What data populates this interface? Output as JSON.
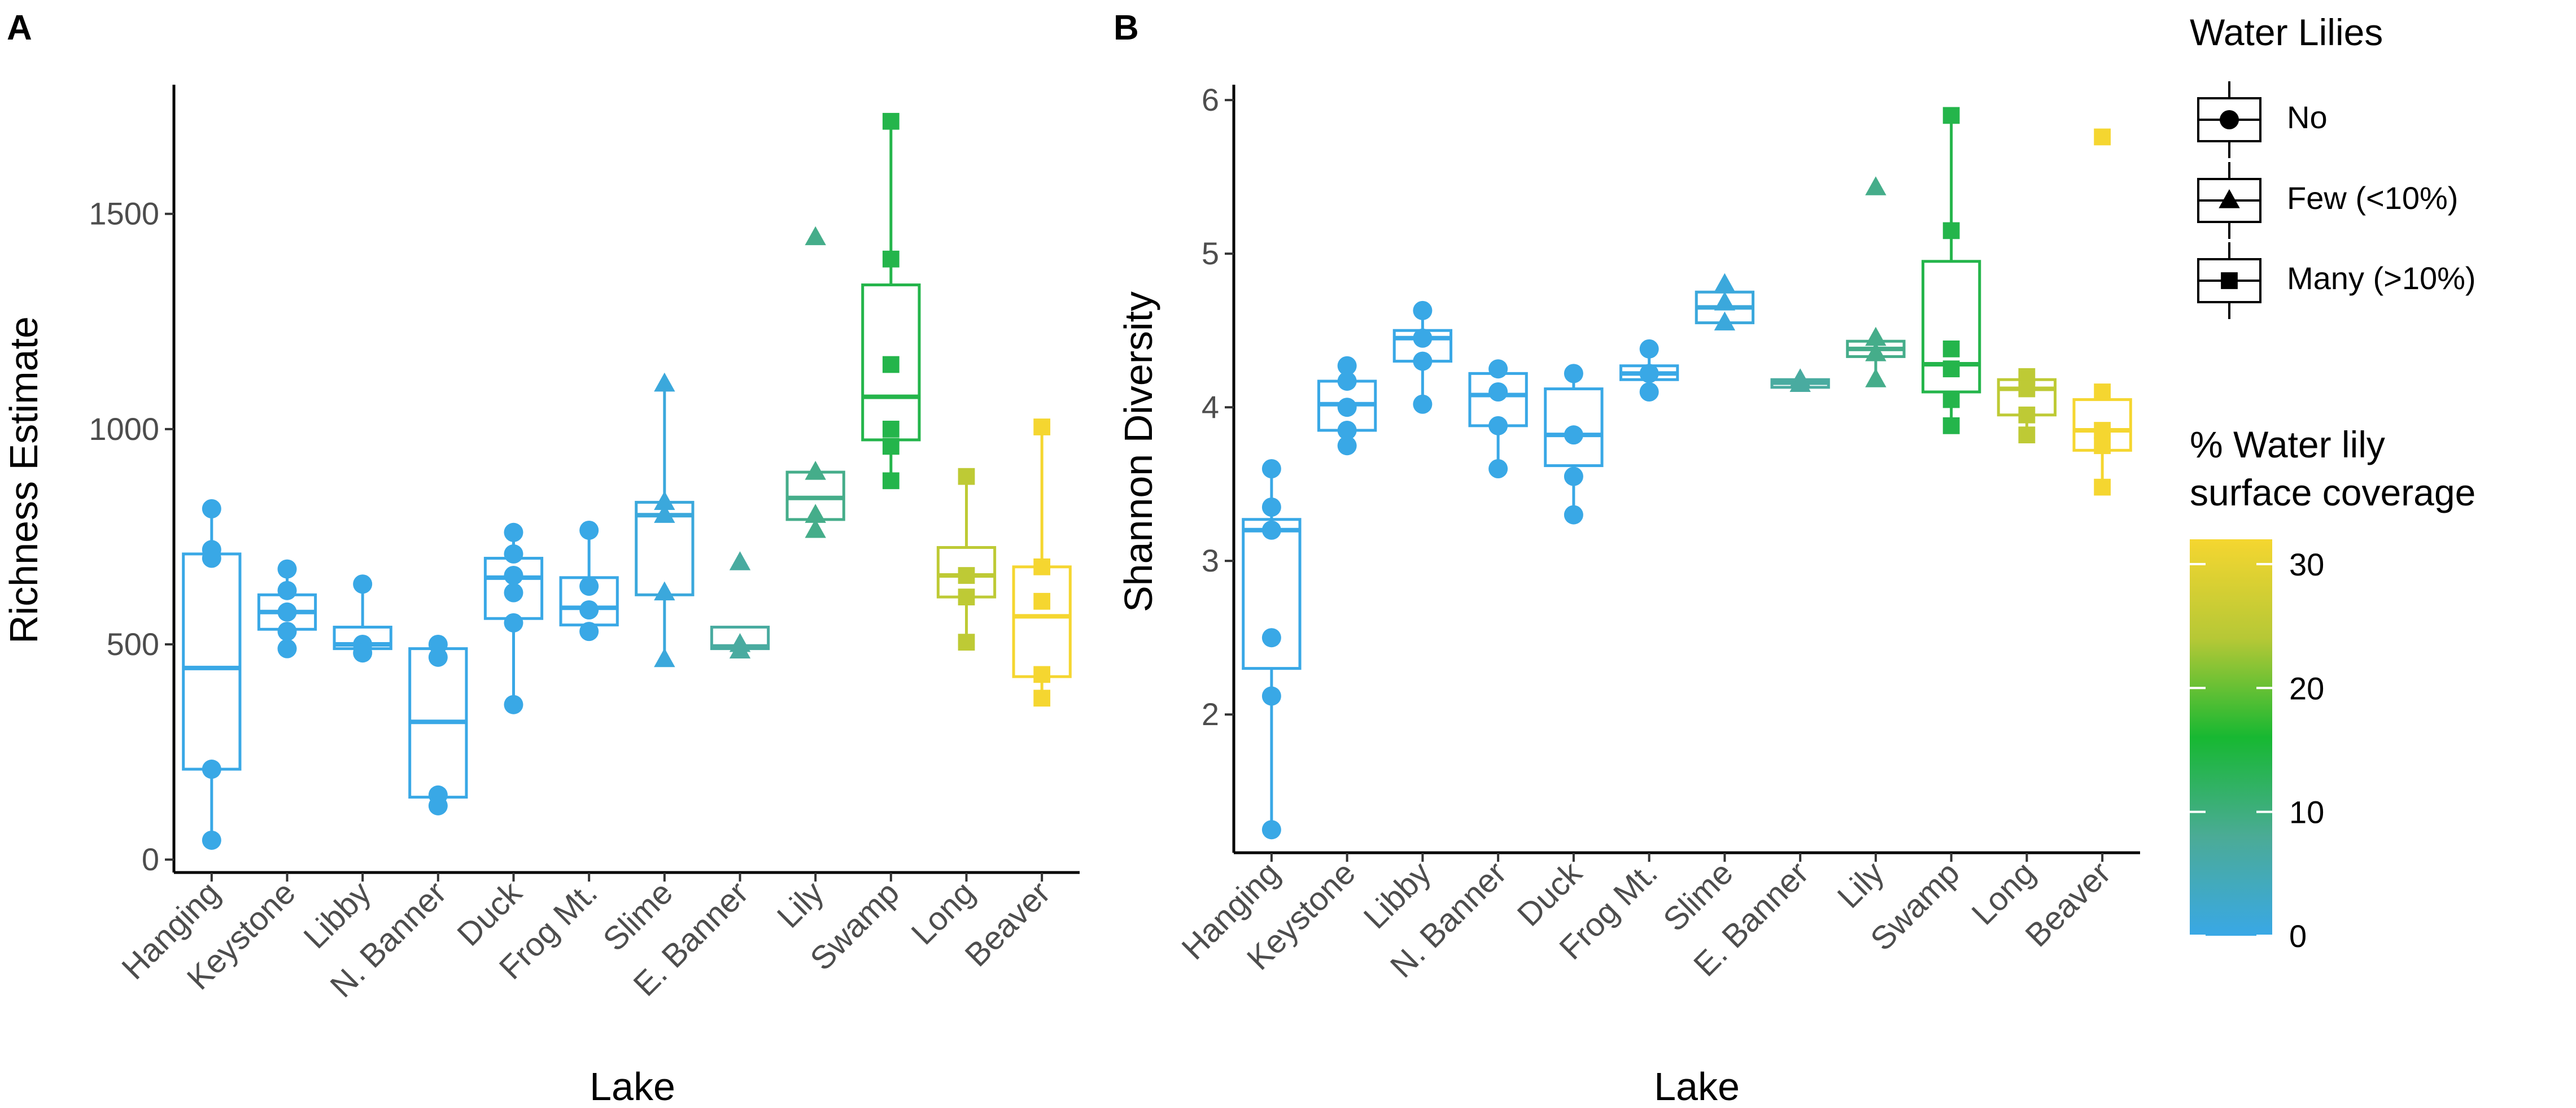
{
  "chart_data": [
    {
      "type": "boxplot",
      "panel": "A",
      "xlabel": "Lake",
      "ylabel": "Richness Estimate",
      "ylim": [
        -30,
        1800
      ],
      "yticks": [
        0,
        500,
        1000,
        1500
      ],
      "categories": [
        "Hanging",
        "Keystone",
        "Libby",
        "N. Banner",
        "Duck",
        "Frog Mt.",
        "Slime",
        "E. Banner",
        "Lily",
        "Swamp",
        "Long",
        "Beaver"
      ],
      "groups": [
        {
          "lake": "Hanging",
          "coverage": 0,
          "lilies": "No",
          "box": {
            "q1": 210,
            "median": 445,
            "q3": 710,
            "lo": 45,
            "hi": 815
          },
          "points": [
            815,
            720,
            700,
            210,
            45
          ]
        },
        {
          "lake": "Keystone",
          "coverage": 0,
          "lilies": "No",
          "box": {
            "q1": 535,
            "median": 575,
            "q3": 615,
            "lo": 490,
            "hi": 675
          },
          "points": [
            675,
            625,
            575,
            530,
            490
          ]
        },
        {
          "lake": "Libby",
          "coverage": 0,
          "lilies": "No",
          "box": {
            "q1": 490,
            "median": 500,
            "q3": 540,
            "lo": 475,
            "hi": 640
          },
          "points": [
            640,
            500,
            480
          ]
        },
        {
          "lake": "N. Banner",
          "coverage": 0,
          "lilies": "No",
          "box": {
            "q1": 145,
            "median": 320,
            "q3": 490,
            "lo": 120,
            "hi": 500
          },
          "points": [
            500,
            470,
            150,
            125
          ]
        },
        {
          "lake": "Duck",
          "coverage": 0,
          "lilies": "No",
          "box": {
            "q1": 560,
            "median": 655,
            "q3": 700,
            "lo": 360,
            "hi": 760
          },
          "points": [
            760,
            710,
            660,
            620,
            550,
            360
          ]
        },
        {
          "lake": "Frog Mt.",
          "coverage": 0,
          "lilies": "No",
          "box": {
            "q1": 545,
            "median": 585,
            "q3": 655,
            "lo": 525,
            "hi": 765
          },
          "points": [
            765,
            635,
            580,
            530
          ]
        },
        {
          "lake": "Slime",
          "coverage": 1,
          "lilies": "Few (<10%)",
          "box": {
            "q1": 615,
            "median": 800,
            "q3": 830,
            "lo": 460,
            "hi": 1105
          },
          "points": [
            1105,
            830,
            800,
            620,
            465
          ]
        },
        {
          "lake": "E. Banner",
          "coverage": 7,
          "lilies": "Few (<10%)",
          "box": {
            "q1": 490,
            "median": 495,
            "q3": 540,
            "lo": 485,
            "hi": 540
          },
          "points": [
            690,
            500,
            485
          ]
        },
        {
          "lake": "Lily",
          "coverage": 9,
          "lilies": "Few (<10%)",
          "box": {
            "q1": 790,
            "median": 840,
            "q3": 900,
            "lo": 760,
            "hi": 900
          },
          "points": [
            1445,
            900,
            800,
            765
          ]
        },
        {
          "lake": "Swamp",
          "coverage": 14,
          "lilies": "Many (>10%)",
          "box": {
            "q1": 975,
            "median": 1075,
            "q3": 1335,
            "lo": 880,
            "hi": 1715
          },
          "points": [
            1715,
            1395,
            1150,
            1000,
            960,
            880
          ]
        },
        {
          "lake": "Long",
          "coverage": 25,
          "lilies": "Many (>10%)",
          "box": {
            "q1": 610,
            "median": 660,
            "q3": 725,
            "lo": 505,
            "hi": 890
          },
          "points": [
            890,
            660,
            610,
            505
          ]
        },
        {
          "lake": "Beaver",
          "coverage": 32,
          "lilies": "Many (>10%)",
          "box": {
            "q1": 425,
            "median": 565,
            "q3": 680,
            "lo": 370,
            "hi": 1005
          },
          "points": [
            1005,
            680,
            600,
            430,
            375
          ]
        }
      ]
    },
    {
      "type": "boxplot",
      "panel": "B",
      "xlabel": "Lake",
      "ylabel": "Shannon Diversity",
      "ylim": [
        1.1,
        6.1
      ],
      "yticks": [
        2,
        3,
        4,
        5,
        6
      ],
      "categories": [
        "Hanging",
        "Keystone",
        "Libby",
        "N. Banner",
        "Duck",
        "Frog Mt.",
        "Slime",
        "E. Banner",
        "Lily",
        "Swamp",
        "Long",
        "Beaver"
      ],
      "groups": [
        {
          "lake": "Hanging",
          "coverage": 0,
          "lilies": "No",
          "box": {
            "q1": 2.3,
            "median": 3.2,
            "q3": 3.27,
            "lo": 1.25,
            "hi": 3.6
          },
          "points": [
            3.6,
            3.35,
            3.2,
            2.5,
            2.12,
            1.25
          ]
        },
        {
          "lake": "Keystone",
          "coverage": 0,
          "lilies": "No",
          "box": {
            "q1": 3.85,
            "median": 4.02,
            "q3": 4.17,
            "lo": 3.75,
            "hi": 4.27
          },
          "points": [
            4.27,
            4.17,
            4.0,
            3.85,
            3.75
          ]
        },
        {
          "lake": "Libby",
          "coverage": 0,
          "lilies": "No",
          "box": {
            "q1": 4.3,
            "median": 4.45,
            "q3": 4.5,
            "lo": 4.02,
            "hi": 4.63
          },
          "points": [
            4.63,
            4.45,
            4.3,
            4.02
          ]
        },
        {
          "lake": "N. Banner",
          "coverage": 0,
          "lilies": "No",
          "box": {
            "q1": 3.88,
            "median": 4.08,
            "q3": 4.22,
            "lo": 3.6,
            "hi": 4.25
          },
          "points": [
            4.25,
            4.1,
            3.88,
            3.6
          ]
        },
        {
          "lake": "Duck",
          "coverage": 0,
          "lilies": "No",
          "box": {
            "q1": 3.62,
            "median": 3.82,
            "q3": 4.12,
            "lo": 3.3,
            "hi": 4.22
          },
          "points": [
            4.22,
            3.82,
            3.55,
            3.3
          ]
        },
        {
          "lake": "Frog Mt.",
          "coverage": 0,
          "lilies": "No",
          "box": {
            "q1": 4.18,
            "median": 4.22,
            "q3": 4.27,
            "lo": 4.1,
            "hi": 4.38
          },
          "points": [
            4.38,
            4.22,
            4.1
          ]
        },
        {
          "lake": "Slime",
          "coverage": 1,
          "lilies": "Few (<10%)",
          "box": {
            "q1": 4.55,
            "median": 4.65,
            "q3": 4.75,
            "lo": 4.52,
            "hi": 4.8
          },
          "points": [
            4.8,
            4.68,
            4.55
          ]
        },
        {
          "lake": "E. Banner",
          "coverage": 7,
          "lilies": "Few (<10%)",
          "box": {
            "q1": 4.13,
            "median": 4.16,
            "q3": 4.18,
            "lo": 4.12,
            "hi": 4.2
          },
          "points": [
            4.18,
            4.15
          ]
        },
        {
          "lake": "Lily",
          "coverage": 9,
          "lilies": "Few (<10%)",
          "box": {
            "q1": 4.33,
            "median": 4.38,
            "q3": 4.43,
            "lo": 4.18,
            "hi": 4.45
          },
          "points": [
            5.43,
            4.45,
            4.35,
            4.18
          ]
        },
        {
          "lake": "Swamp",
          "coverage": 14,
          "lilies": "Many (>10%)",
          "box": {
            "q1": 4.1,
            "median": 4.28,
            "q3": 4.95,
            "lo": 3.88,
            "hi": 5.9
          },
          "points": [
            5.9,
            5.15,
            4.38,
            4.25,
            4.05,
            3.88
          ]
        },
        {
          "lake": "Long",
          "coverage": 25,
          "lilies": "Many (>10%)",
          "box": {
            "q1": 3.95,
            "median": 4.12,
            "q3": 4.18,
            "lo": 3.82,
            "hi": 4.2
          },
          "points": [
            4.2,
            4.12,
            3.95,
            3.82
          ]
        },
        {
          "lake": "Beaver",
          "coverage": 32,
          "lilies": "Many (>10%)",
          "box": {
            "q1": 3.72,
            "median": 3.85,
            "q3": 4.05,
            "lo": 3.48,
            "hi": 4.1
          },
          "points": [
            5.76,
            4.1,
            3.85,
            3.75,
            3.48
          ]
        }
      ]
    }
  ],
  "panel_labels": [
    "A",
    "B"
  ],
  "legend": {
    "shape_title": "Water Lilies",
    "shape_items": [
      {
        "label": "No",
        "shape": "circle"
      },
      {
        "label": "Few (<10%)",
        "shape": "triangle"
      },
      {
        "label": "Many (>10%)",
        "shape": "square"
      }
    ],
    "color_title_line1": "% Water lily",
    "color_title_line2": "surface coverage",
    "color_ticks": [
      0,
      10,
      20,
      30
    ],
    "color_range": [
      0,
      32
    ],
    "color_stops": [
      "#39a8e6",
      "#4bab96",
      "#17b832",
      "#b6c836",
      "#f5d630"
    ]
  }
}
